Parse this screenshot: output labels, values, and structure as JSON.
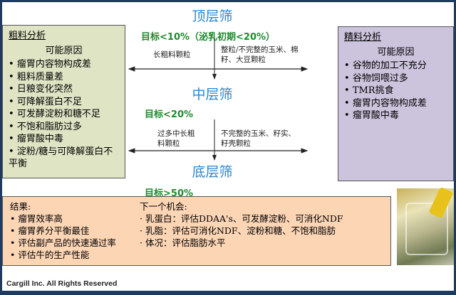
{
  "top_sieve": {
    "title": "顶层筛",
    "target": "目标<10%（泌乳初期<20%）",
    "left_note": "长粗料颗粒",
    "right_note": "整粒/不完整的玉米、棉籽、大豆颗粒"
  },
  "middle_sieve": {
    "title": "中层筛",
    "target": "目标<20%",
    "left_note": "过多中长粗料颗粒",
    "right_note": "不完整的玉米、籽实、籽壳颗粒"
  },
  "bottom_sieve": {
    "title": "底层筛",
    "target": "目标>50%"
  },
  "forage_box": {
    "title": "粗料分析",
    "subtitle": "可能原因",
    "items": [
      "瘤胃内容物构成差",
      "粗料质量差",
      "日粮变化突然",
      "可降解蛋白不足",
      "可发酵淀粉和糖不足",
      "不饱和脂肪过多",
      "瘤胃酸中毒",
      "淀粉/糖与可降解蛋白不平衡"
    ]
  },
  "concentrate_box": {
    "title": "精料分析",
    "subtitle": "可能原因",
    "items": [
      "谷物的加工不充分",
      "谷物饲喂过多",
      "TMR挑食",
      "瘤胃内容物构成差",
      "瘤胃酸中毒"
    ]
  },
  "results_box": {
    "results_title": "结果:",
    "results": [
      "瘤胃效率高",
      "瘤胃养分平衡最佳",
      "评估副产品的快速通过率",
      "评估牛的生产性能"
    ],
    "next_title": "下一个机会:",
    "next": [
      "乳蛋白：评估DDAA's、可发酵淀粉、可消化NDF",
      "乳脂：评估可消化NDF、淀粉和糖、不饱和脂肪",
      "体况：评估脂肪水平"
    ]
  },
  "footer": "Cargill Inc. All Rights Reserved",
  "colors": {
    "frame": "#1f3a5f",
    "sieve_title": "#2e86c9",
    "target": "#1e8a2e",
    "forage_bg": "#dfe4c4",
    "concentrate_bg": "#ccc4dd",
    "results_bg": "#fcd5b5"
  }
}
